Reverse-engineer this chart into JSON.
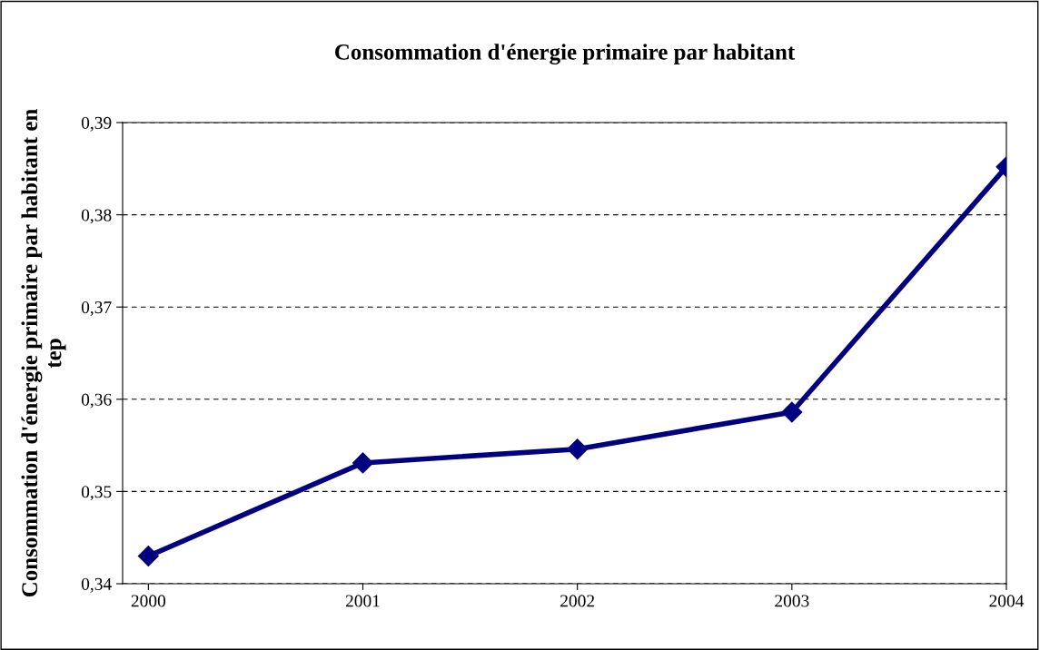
{
  "chart_data": {
    "type": "line",
    "title": "Consommation d'énergie primaire par habitant",
    "ylabel": "Consommation d'énergie primaire par habitant en\ntep",
    "x": [
      2000,
      2001,
      2002,
      2003,
      2004
    ],
    "series": [
      {
        "color": "#000080",
        "values": [
          0.343,
          0.3531,
          0.3546,
          0.3586,
          0.3852
        ]
      }
    ],
    "xlim": [
      1999.88,
      2004
    ],
    "xticks": [
      2000,
      2001,
      2002,
      2003,
      2004
    ],
    "ylim": [
      0.34,
      0.39
    ],
    "yticks": [
      {
        "value": 0.34,
        "label": "0,34"
      },
      {
        "value": 0.35,
        "label": "0,35"
      },
      {
        "value": 0.36,
        "label": "0,36"
      },
      {
        "value": 0.37,
        "label": "0,37"
      },
      {
        "value": 0.38,
        "label": "0,38"
      },
      {
        "value": 0.39,
        "label": "0,39"
      }
    ],
    "grid": "y",
    "marker": "diamond",
    "line_style": "solid",
    "legend": false
  }
}
